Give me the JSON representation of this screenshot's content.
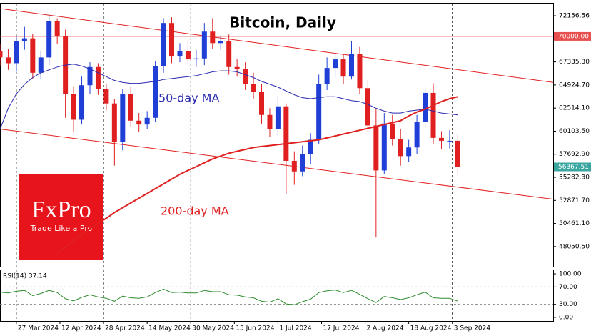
{
  "chart_data": {
    "type": "candlestick",
    "title": "Bitcoin, Daily",
    "x": [
      "21 Mar 2024",
      "24 Mar 2024",
      "27 Mar 2024",
      "30 Mar 2024",
      "2 Apr 2024",
      "5 Apr 2024",
      "8 Apr 2024",
      "11 Apr 2024",
      "14 Apr 2024",
      "17 Apr 2024",
      "20 Apr 2024",
      "23 Apr 2024",
      "26 Apr 2024",
      "29 Apr 2024",
      "2 May 2024",
      "5 May 2024",
      "8 May 2024",
      "11 May 2024",
      "14 May 2024",
      "17 May 2024",
      "20 May 2024",
      "23 May 2024",
      "26 May 2024",
      "29 May 2024",
      "1 Jun 2024",
      "4 Jun 2024",
      "7 Jun 2024",
      "10 Jun 2024",
      "13 Jun 2024",
      "16 Jun 2024",
      "19 Jun 2024",
      "22 Jun 2024",
      "25 Jun 2024",
      "28 Jun 2024",
      "1 Jul 2024",
      "4 Jul 2024",
      "7 Jul 2024",
      "10 Jul 2024",
      "13 Jul 2024",
      "16 Jul 2024",
      "19 Jul 2024",
      "22 Jul 2024",
      "25 Jul 2024",
      "28 Jul 2024",
      "31 Jul 2024",
      "3 Aug 2024",
      "6 Aug 2024",
      "9 Aug 2024",
      "12 Aug 2024",
      "15 Aug 2024",
      "18 Aug 2024",
      "21 Aug 2024",
      "24 Aug 2024",
      "27 Aug 2024",
      "30 Aug 2024",
      "2 Sep 2024",
      "5 Sep 2024"
    ],
    "open": [
      68500,
      67800,
      67200,
      69500,
      69800,
      66200,
      67800,
      71600,
      70000,
      64000,
      61300,
      64900,
      66800,
      64500,
      63000,
      59000,
      64000,
      61200,
      60800,
      61500,
      66900,
      71400,
      67900,
      68500,
      67600,
      67700,
      70500,
      69300,
      69500,
      66800,
      66600,
      65000,
      64200,
      61800,
      60300,
      62700,
      57000,
      55900,
      57700,
      59200,
      65000,
      66700,
      67600,
      65800,
      68200,
      64600,
      60700,
      56000,
      60900,
      59300,
      57500,
      58400,
      61100,
      64100,
      59400,
      59100,
      59100
    ],
    "high": [
      69200,
      68700,
      70000,
      71000,
      70300,
      68500,
      72200,
      71900,
      70700,
      64800,
      65800,
      67300,
      67200,
      65000,
      63500,
      64500,
      64800,
      62000,
      62200,
      67400,
      71900,
      72000,
      69300,
      69600,
      68600,
      71400,
      71900,
      70100,
      70200,
      67600,
      67300,
      66200,
      65000,
      62500,
      63700,
      63000,
      58000,
      58600,
      59900,
      66000,
      67800,
      68300,
      68200,
      69500,
      68900,
      65400,
      62400,
      62000,
      61800,
      60300,
      59200,
      61800,
      64800,
      65100,
      60100,
      60200,
      59800
    ],
    "low": [
      66900,
      66500,
      66300,
      68600,
      65600,
      65500,
      67000,
      69200,
      61500,
      60000,
      60800,
      64000,
      63900,
      62300,
      56500,
      58100,
      60500,
      60000,
      60300,
      61100,
      66200,
      67200,
      67300,
      67000,
      66800,
      67000,
      68700,
      68600,
      66000,
      65800,
      64400,
      63500,
      60900,
      59500,
      59600,
      53500,
      54500,
      55400,
      56700,
      58800,
      64400,
      65700,
      65000,
      65500,
      64000,
      60000,
      49000,
      55600,
      58600,
      56500,
      56900,
      57700,
      60600,
      58800,
      58200,
      58300,
      55500
    ],
    "close": [
      67800,
      67200,
      69500,
      69800,
      66200,
      67800,
      71600,
      70000,
      64000,
      61300,
      64900,
      66800,
      64500,
      63000,
      59000,
      64000,
      61200,
      60800,
      61500,
      66900,
      71400,
      67900,
      68500,
      67600,
      67700,
      70500,
      69300,
      69500,
      66800,
      66600,
      65000,
      64200,
      61800,
      60300,
      62700,
      57000,
      55900,
      57700,
      59200,
      65000,
      66700,
      67600,
      65800,
      68200,
      64600,
      60700,
      56000,
      60900,
      59300,
      57500,
      58400,
      61100,
      64100,
      59400,
      59100,
      59100,
      56367.51
    ],
    "up_color": "#1f3fd6",
    "down_color": "#e02020",
    "series": [
      {
        "name": "50-day MA",
        "color": "#2a2ab0",
        "values": [
          60300,
          62500,
          64000,
          65000,
          65700,
          66200,
          66500,
          66800,
          67000,
          67100,
          66900,
          66600,
          66200,
          65800,
          65400,
          65200,
          65100,
          65100,
          65200,
          65300,
          65500,
          65600,
          65700,
          65800,
          65900,
          66100,
          66300,
          66400,
          66400,
          66300,
          66000,
          65700,
          65300,
          65000,
          64700,
          64300,
          63900,
          63600,
          63500,
          63600,
          63700,
          63700,
          63500,
          63300,
          63200,
          62900,
          62500,
          62200,
          62000,
          62000,
          62200,
          62300,
          62400,
          62200,
          62000,
          61900,
          61800
        ]
      },
      {
        "name": "200-day MA",
        "color": "#e02020",
        "values": [
          null,
          null,
          null,
          null,
          null,
          null,
          null,
          47300,
          48000,
          48700,
          49300,
          49900,
          50500,
          51000,
          51600,
          52100,
          52600,
          53100,
          53600,
          54100,
          54600,
          55100,
          55600,
          56000,
          56400,
          56800,
          57200,
          57500,
          57800,
          58000,
          58200,
          58400,
          58500,
          58600,
          58700,
          58800,
          58900,
          59000,
          59100,
          59200,
          59400,
          59600,
          59800,
          60000,
          60200,
          60400,
          60600,
          60800,
          61000,
          61200,
          61700,
          62100,
          62400,
          62800,
          63200,
          63500,
          63700
        ]
      }
    ],
    "channel": {
      "x": [
        "21 Mar 2024",
        "10 Oct 2024"
      ],
      "upper": [
        72905,
        65195
      ],
      "lower": [
        60329,
        52993
      ],
      "color": "#e02020"
    },
    "price_lines": {
      "values": [
        70000,
        56367.51
      ],
      "value_labels": [
        "70000.00",
        "56367.51"
      ],
      "colors": [
        "#e85050",
        "#3aa6a0"
      ]
    },
    "xlim": [
      "21 Mar 2024",
      "10 Oct 2024"
    ],
    "xticks": [
      "27 Mar 2024",
      "12 Apr 2024",
      "28 Apr 2024",
      "14 May 2024",
      "30 May 2024",
      "15 Jun 2024",
      "1 Jul 2024",
      "17 Jul 2024",
      "2 Aug 2024",
      "18 Aug 2024",
      "3 Sep 2024"
    ],
    "ylim": [
      45950,
      73430
    ],
    "yticks": [
      72156.56,
      {
        "value": 67335.3,
        "label": "67335.30"
      },
      {
        "value": 64924.7,
        "label": "64924.70"
      },
      {
        "value": 62514.1,
        "label": "62514.10"
      },
      {
        "value": 60103.5,
        "label": "60103.50"
      },
      {
        "value": 57692.9,
        "label": "57692.90"
      },
      {
        "value": 55282.3,
        "label": "55282.30"
      },
      {
        "value": 52871.7,
        "label": "52871.70"
      },
      {
        "value": 50461.1,
        "label": "50461.10"
      },
      {
        "value": 48050.5,
        "label": "48050.50"
      }
    ],
    "annotations": [
      "50-day MA",
      "200-day MA"
    ],
    "logo": {
      "title": "FxPro",
      "tagline": "Trade Like a Pro"
    },
    "rsi": {
      "title": "RSI(14) 37.14",
      "color": "#2e8b2e",
      "values": [
        58,
        56,
        60,
        62,
        50,
        55,
        62,
        57,
        43,
        38,
        46,
        52,
        47,
        44,
        37,
        49,
        45,
        44,
        47,
        57,
        65,
        57,
        58,
        56,
        56,
        62,
        59,
        59,
        52,
        51,
        47,
        45,
        37,
        35,
        43,
        31,
        29,
        36,
        42,
        57,
        61,
        63,
        57,
        62,
        53,
        43,
        34,
        48,
        45,
        41,
        45,
        52,
        58,
        45,
        44,
        44,
        37.14
      ],
      "ylim": [
        -8.3,
        108.3
      ],
      "yticks": [
        {
          "value": 100,
          "label": "100.00"
        },
        {
          "value": 70,
          "label": "70.00"
        },
        {
          "value": 30,
          "label": "30.00"
        },
        {
          "value": 0,
          "label": "0.00"
        }
      ]
    }
  }
}
